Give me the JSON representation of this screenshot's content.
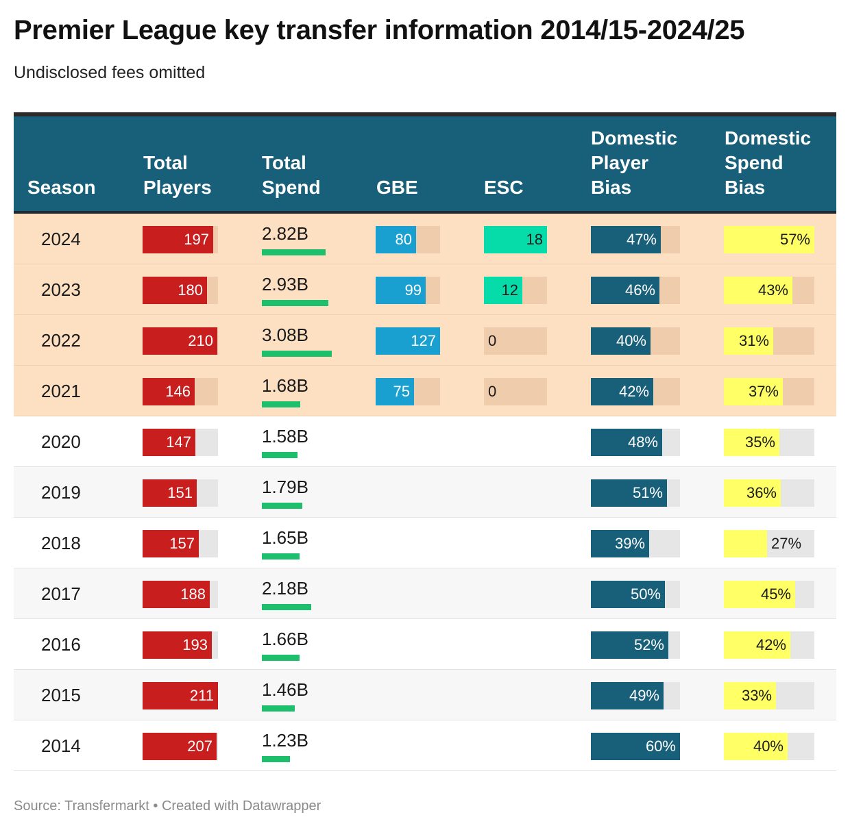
{
  "title": "Premier League key transfer information 2014/15-2024/25",
  "subtitle": "Undisclosed fees omitted",
  "footer": {
    "source": "Source: Transfermarkt",
    "separator": "•",
    "credit": "Created with Datawrapper"
  },
  "colors": {
    "header_bg": "#185f7a",
    "highlight_rows": "#fde0c2",
    "players_bar": "#c81e1e",
    "spend_bar": "#1dbf6c",
    "gbe_bar": "#1aa0d0",
    "esc_bar": "#06dcaa",
    "player_bias_bar": "#185f7a",
    "spend_bias_bar": "#ffff66"
  },
  "chart_data": {
    "type": "table",
    "columns": [
      "Season",
      "Total\nPlayers",
      "Total\nSpend",
      "GBE",
      "ESC",
      "Domestic\nPlayer\nBias",
      "Domestic\nSpend\nBias"
    ],
    "highlighted_seasons": [
      "2024",
      "2023",
      "2022",
      "2021"
    ],
    "rows": [
      {
        "season": "2024",
        "total_players": 197,
        "total_spend": "2.82B",
        "spend_value": 2.82,
        "gbe": 80,
        "esc": 18,
        "player_bias": 47,
        "spend_bias": 57
      },
      {
        "season": "2023",
        "total_players": 180,
        "total_spend": "2.93B",
        "spend_value": 2.93,
        "gbe": 99,
        "esc": 12,
        "player_bias": 46,
        "spend_bias": 43
      },
      {
        "season": "2022",
        "total_players": 210,
        "total_spend": "3.08B",
        "spend_value": 3.08,
        "gbe": 127,
        "esc": 0,
        "player_bias": 40,
        "spend_bias": 31
      },
      {
        "season": "2021",
        "total_players": 146,
        "total_spend": "1.68B",
        "spend_value": 1.68,
        "gbe": 75,
        "esc": 0,
        "player_bias": 42,
        "spend_bias": 37
      },
      {
        "season": "2020",
        "total_players": 147,
        "total_spend": "1.58B",
        "spend_value": 1.58,
        "gbe": null,
        "esc": null,
        "player_bias": 48,
        "spend_bias": 35
      },
      {
        "season": "2019",
        "total_players": 151,
        "total_spend": "1.79B",
        "spend_value": 1.79,
        "gbe": null,
        "esc": null,
        "player_bias": 51,
        "spend_bias": 36
      },
      {
        "season": "2018",
        "total_players": 157,
        "total_spend": "1.65B",
        "spend_value": 1.65,
        "gbe": null,
        "esc": null,
        "player_bias": 39,
        "spend_bias": 27
      },
      {
        "season": "2017",
        "total_players": 188,
        "total_spend": "2.18B",
        "spend_value": 2.18,
        "gbe": null,
        "esc": null,
        "player_bias": 50,
        "spend_bias": 45
      },
      {
        "season": "2016",
        "total_players": 193,
        "total_spend": "1.66B",
        "spend_value": 1.66,
        "gbe": null,
        "esc": null,
        "player_bias": 52,
        "spend_bias": 42
      },
      {
        "season": "2015",
        "total_players": 211,
        "total_spend": "1.46B",
        "spend_value": 1.46,
        "gbe": null,
        "esc": null,
        "player_bias": 49,
        "spend_bias": 33
      },
      {
        "season": "2014",
        "total_players": 207,
        "total_spend": "1.23B",
        "spend_value": 1.23,
        "gbe": null,
        "esc": null,
        "player_bias": 60,
        "spend_bias": 40
      }
    ]
  }
}
